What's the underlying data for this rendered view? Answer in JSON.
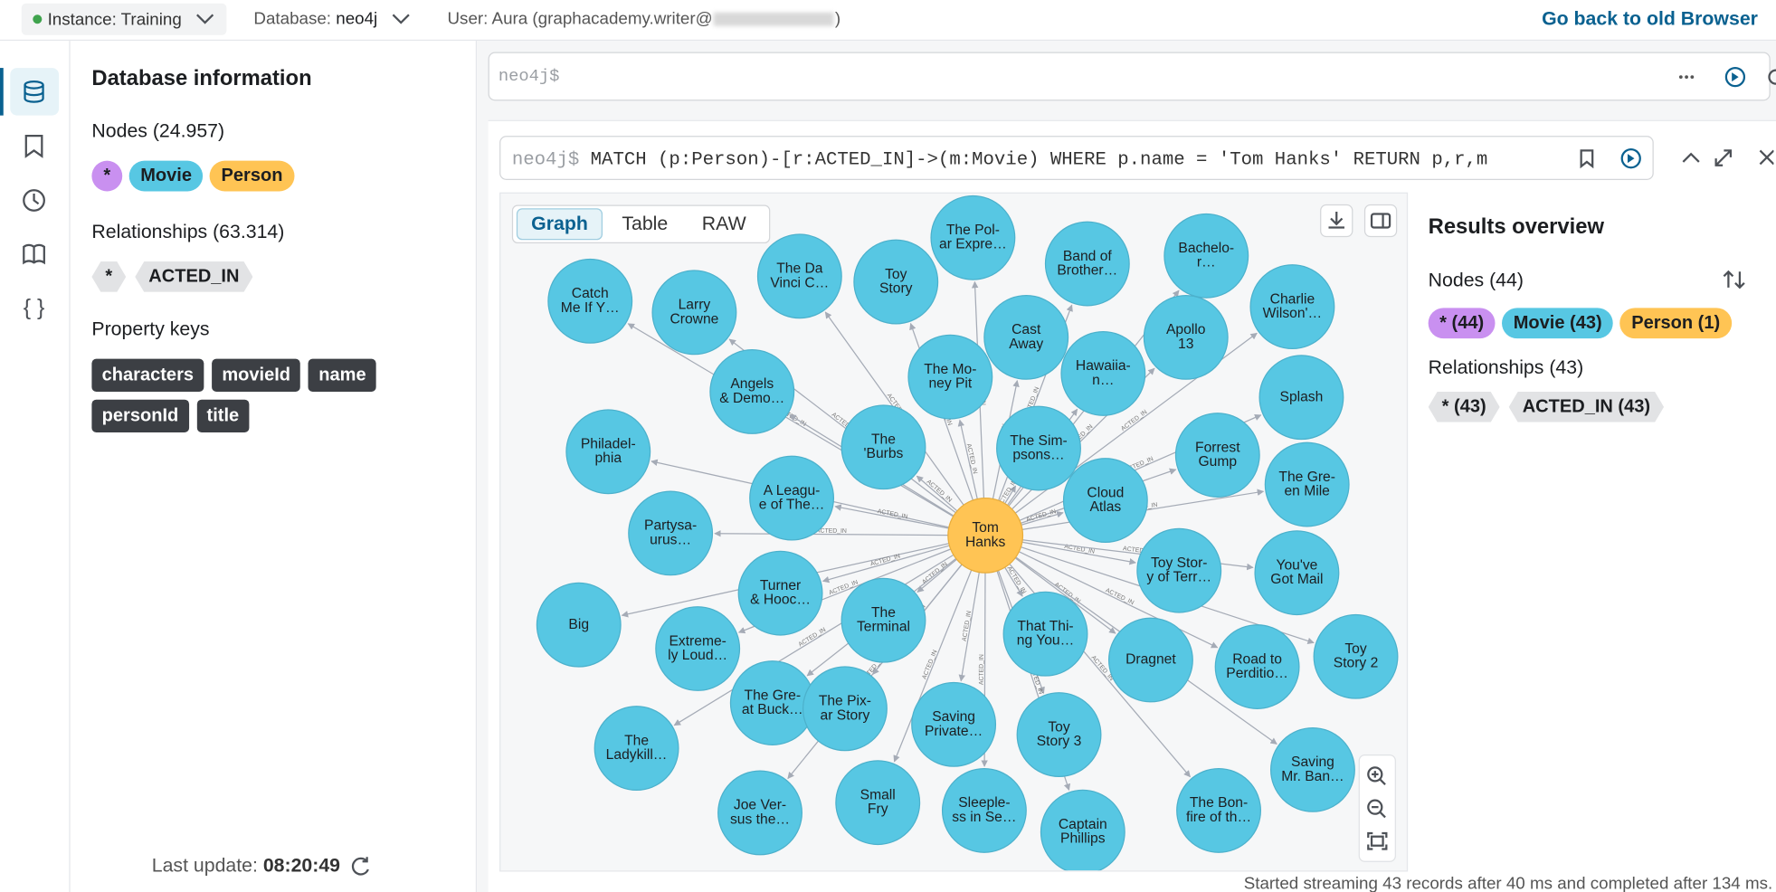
{
  "top_bar": {
    "instance": "Instance: Training",
    "database_label": "Database:",
    "database": "neo4j",
    "user": "User: Aura (graphacademy.writer@",
    "user_end": ")",
    "back_link": "Go back to old Browser"
  },
  "sidebar": {
    "title": "Database information",
    "nodes_heading": "Nodes (24.957)",
    "node_labels": [
      "*",
      "Movie",
      "Person"
    ],
    "relationships_heading": "Relationships (63.314)",
    "relationship_types": [
      "*",
      "ACTED_IN"
    ],
    "property_keys_heading": "Property keys",
    "property_keys": [
      "characters",
      "movieId",
      "name",
      "personId",
      "title"
    ],
    "last_update_label": "Last update:",
    "last_update": "08:20:49"
  },
  "editor": {
    "prompt": "neo4j$"
  },
  "result": {
    "prompt": "neo4j$",
    "query": "MATCH (p:Person)-[r:ACTED_IN]->(m:Movie) WHERE p.name = 'Tom Hanks' RETURN p,r,m",
    "tabs": [
      "Graph",
      "Table",
      "RAW"
    ],
    "graph": {
      "center": [
        "Tom",
        "Hanks"
      ],
      "relationship": "ACTED_IN",
      "nodes": [
        [
          "Catch",
          "Me If Y…"
        ],
        [
          "Larry",
          "Crowne"
        ],
        [
          "The Da",
          "Vinci C…"
        ],
        [
          "Toy",
          "Story"
        ],
        [
          "The Pol-",
          "ar Expre…"
        ],
        [
          "Band of",
          "Brother…"
        ],
        [
          "Bachelo-",
          "r…"
        ],
        [
          "Charlie",
          "Wilson'…"
        ],
        [
          "Angels",
          "& Demo…"
        ],
        [
          "The Mo-",
          "ney Pit"
        ],
        [
          "Cast",
          "Away"
        ],
        [
          "Hawaiia-",
          "n…"
        ],
        [
          "Apollo",
          "13"
        ],
        [
          "Splash"
        ],
        [
          "Philadel-",
          "phia"
        ],
        [
          "The",
          "'Burbs"
        ],
        [
          "The Sim-",
          "psons…"
        ],
        [
          "Forrest",
          "Gump"
        ],
        [
          "The Gre-",
          "en Mile"
        ],
        [
          "A Leagu-",
          "e of The…"
        ],
        [
          "Cloud",
          "Atlas"
        ],
        [
          "Partysa-",
          "urus…"
        ],
        [
          "Toy Stor-",
          "y of Terr…"
        ],
        [
          "You've",
          "Got Mail"
        ],
        [
          "Big"
        ],
        [
          "Turner",
          "& Hooc…"
        ],
        [
          "The",
          "Terminal"
        ],
        [
          "That Thi-",
          "ng You…"
        ],
        [
          "Dragnet"
        ],
        [
          "Road to",
          "Perditio…"
        ],
        [
          "Toy",
          "Story 2"
        ],
        [
          "Extreme-",
          "ly Loud…"
        ],
        [
          "The Gre-",
          "at Buck…"
        ],
        [
          "The Pix-",
          "ar Story"
        ],
        [
          "Saving",
          "Private…"
        ],
        [
          "Toy",
          "Story 3"
        ],
        [
          "The",
          "Ladykill…"
        ],
        [
          "Saving",
          "Mr. Ban…"
        ],
        [
          "Joe Ver-",
          "sus the…"
        ],
        [
          "Small",
          "Fry"
        ],
        [
          "Sleeple-",
          "ss in Se…"
        ],
        [
          "Captain",
          "Phillips"
        ],
        [
          "The Bon-",
          "fire of th…"
        ]
      ]
    },
    "overview": {
      "title": "Results overview",
      "nodes_heading": "Nodes (44)",
      "node_chips": [
        "* (44)",
        "Movie (43)",
        "Person (1)"
      ],
      "relationships_heading": "Relationships (43)",
      "relationship_chips": [
        "* (43)",
        "ACTED_IN (43)"
      ]
    },
    "status": "Started streaming 43 records after 40 ms and completed after 134 ms."
  }
}
